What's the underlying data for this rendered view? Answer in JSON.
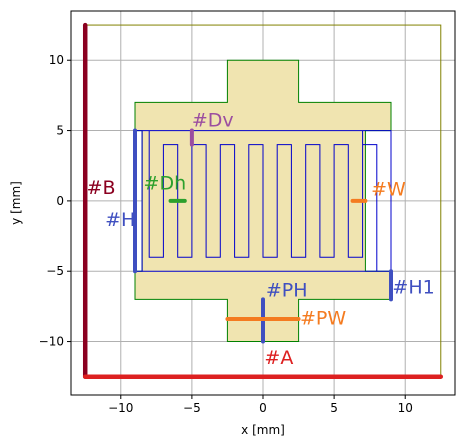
{
  "chart_data": {
    "type": "diagram",
    "xlabel": "x [mm]",
    "ylabel": "y [mm]",
    "xlim": [
      -13.5,
      13.5
    ],
    "ylim": [
      -13.8,
      13.5
    ],
    "grid": true,
    "x_ticks": [
      {
        "value": -10,
        "label": "−10"
      },
      {
        "value": -5,
        "label": "−5"
      },
      {
        "value": 0,
        "label": "0"
      },
      {
        "value": 5,
        "label": "5"
      },
      {
        "value": 10,
        "label": "10"
      }
    ],
    "y_ticks": [
      {
        "value": -10,
        "label": "−10"
      },
      {
        "value": -5,
        "label": "−5"
      },
      {
        "value": 0,
        "label": "0"
      },
      {
        "value": 5,
        "label": "5"
      },
      {
        "value": 10,
        "label": "10"
      }
    ],
    "bounding_box": {
      "x0": -12.5,
      "x1": 12.5,
      "y0": -12.5,
      "y1": 12.5,
      "color": "#808000"
    },
    "plate": {
      "fill": "#f0e4b0",
      "stroke": "#008000",
      "outline": [
        [
          -2.5,
          10
        ],
        [
          2.5,
          10
        ],
        [
          2.5,
          7
        ],
        [
          9,
          7
        ],
        [
          9,
          5
        ],
        [
          7.2,
          5
        ],
        [
          7.2,
          -5
        ],
        [
          9,
          -5
        ],
        [
          9,
          -7
        ],
        [
          2.5,
          -7
        ],
        [
          2.5,
          -10
        ],
        [
          -2.5,
          -10
        ],
        [
          -2.5,
          -7
        ],
        [
          -9,
          -7
        ],
        [
          -9,
          -5
        ],
        [
          -8.5,
          -5
        ],
        [
          -8.5,
          5
        ],
        [
          -9,
          5
        ],
        [
          -9,
          7
        ],
        [
          -2.5,
          7
        ]
      ]
    },
    "trace": {
      "color": "#0000cc",
      "outline": [
        [
          -9,
          5
        ],
        [
          7,
          5
        ],
        [
          7,
          -4
        ],
        [
          6,
          -4
        ],
        [
          6,
          4
        ],
        [
          5,
          4
        ],
        [
          5,
          -4
        ],
        [
          4,
          -4
        ],
        [
          4,
          4
        ],
        [
          3,
          4
        ],
        [
          3,
          -4
        ],
        [
          2,
          -4
        ],
        [
          2,
          4
        ],
        [
          1,
          4
        ],
        [
          1,
          -4
        ],
        [
          0,
          -4
        ],
        [
          0,
          4
        ],
        [
          -1,
          4
        ],
        [
          -1,
          -4
        ],
        [
          -2,
          -4
        ],
        [
          -2,
          4
        ],
        [
          -3,
          4
        ],
        [
          -3,
          -4
        ],
        [
          -4,
          -4
        ],
        [
          -4,
          4
        ],
        [
          -5,
          4
        ],
        [
          -5,
          -4
        ],
        [
          -6,
          -4
        ],
        [
          -6,
          4
        ],
        [
          -7,
          4
        ],
        [
          -7,
          -4
        ],
        [
          -8,
          -4
        ],
        [
          -8,
          5
        ],
        [
          -8.5,
          5
        ],
        [
          -8.5,
          -5
        ],
        [
          8,
          -5
        ],
        [
          8,
          4
        ],
        [
          7,
          4
        ],
        [
          7,
          5
        ],
        [
          9,
          5
        ],
        [
          9,
          -5
        ],
        [
          -9,
          -5
        ]
      ]
    },
    "dimensions": [
      {
        "id": "B",
        "label": "#B",
        "color": "#8b0020",
        "from": [
          -12.5,
          -12.5
        ],
        "to": [
          -12.5,
          12.5
        ],
        "label_at": [
          -12.4,
          0.5
        ]
      },
      {
        "id": "A",
        "label": "#A",
        "color": "#dd2020",
        "from": [
          -12.5,
          -12.5
        ],
        "to": [
          12.5,
          -12.5
        ],
        "label_at": [
          0.1,
          -11.6
        ]
      },
      {
        "id": "H",
        "label": "#H",
        "color": "#3f4fc0",
        "from": [
          -9,
          -5
        ],
        "to": [
          -9,
          5
        ],
        "label_at": [
          -11.1,
          -1.8
        ]
      },
      {
        "id": "H1",
        "label": "#H1",
        "color": "#3f4fc0",
        "from": [
          9,
          -7
        ],
        "to": [
          9,
          -5
        ],
        "label_at": [
          9.1,
          -6.6
        ]
      },
      {
        "id": "PH",
        "label": "#PH",
        "color": "#3f4fc0",
        "from": [
          0,
          -10
        ],
        "to": [
          0,
          -7
        ],
        "label_at": [
          0.2,
          -6.8
        ]
      },
      {
        "id": "PW",
        "label": "#PW",
        "color": "#f47b20",
        "from": [
          -2.5,
          -8.4
        ],
        "to": [
          2.5,
          -8.4
        ],
        "label_at": [
          2.6,
          -8.8
        ]
      },
      {
        "id": "W",
        "label": "#W",
        "color": "#f47b20",
        "from": [
          6.3,
          0
        ],
        "to": [
          7.2,
          0
        ],
        "label_at": [
          7.6,
          0.4
        ]
      },
      {
        "id": "Dh",
        "label": "#Dh",
        "color": "#2ca02c",
        "from": [
          -6.5,
          0
        ],
        "to": [
          -5.5,
          0
        ],
        "label_at": [
          -8.4,
          0.8
        ]
      },
      {
        "id": "Dv",
        "label": "#Dv",
        "color": "#9b4ea0",
        "from": [
          -5,
          4
        ],
        "to": [
          -5,
          5
        ],
        "label_at": [
          -5,
          5.3
        ]
      }
    ]
  }
}
